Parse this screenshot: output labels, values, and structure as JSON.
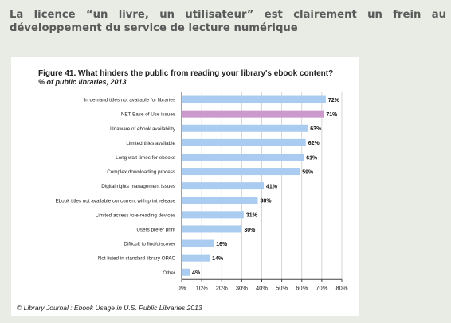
{
  "heading": "La licence “un livre, un utilisateur” est clairement un frein au développement du service de lecture numérique",
  "credit": "© Library Journal : Ebook Usage in U.S. Public Libraries 2013",
  "chart_data": {
    "type": "bar",
    "orientation": "horizontal",
    "title": "Figure 41. What hinders the public from reading your library's ebook content?",
    "subtitle": "% of public libraries, 2013",
    "categories": [
      "In demand titles not available for libraries",
      "NET Ease of Use issues",
      "Unaware of ebook availability",
      "Limited titles available",
      "Long wait times for ebooks",
      "Complex downloading process",
      "Digital rights management issues",
      "Ebook titles not available concurrent with print release",
      "Limited access to e-reading devices",
      "Users prefer print",
      "Difficult to find/discover",
      "Not listed in standard library OPAC",
      "Other"
    ],
    "values": [
      72,
      71,
      63,
      62,
      61,
      59,
      41,
      38,
      31,
      30,
      16,
      14,
      4
    ],
    "value_labels": [
      "72%",
      "71%",
      "63%",
      "62%",
      "61%",
      "59%",
      "41%",
      "38%",
      "31%",
      "30%",
      "16%",
      "14%",
      "4%"
    ],
    "highlight_index": 1,
    "xlim": [
      0,
      80
    ],
    "xticks": [
      0,
      10,
      20,
      30,
      40,
      50,
      60,
      70,
      80
    ],
    "xtick_labels": [
      "0%",
      "10%",
      "20%",
      "30%",
      "40%",
      "50%",
      "60%",
      "70%",
      "80%"
    ],
    "grid": true,
    "colors": {
      "bar": "#a9ccf0",
      "highlight": "#cc99cc",
      "grid": "#cccccc",
      "axis": "#444444"
    }
  }
}
